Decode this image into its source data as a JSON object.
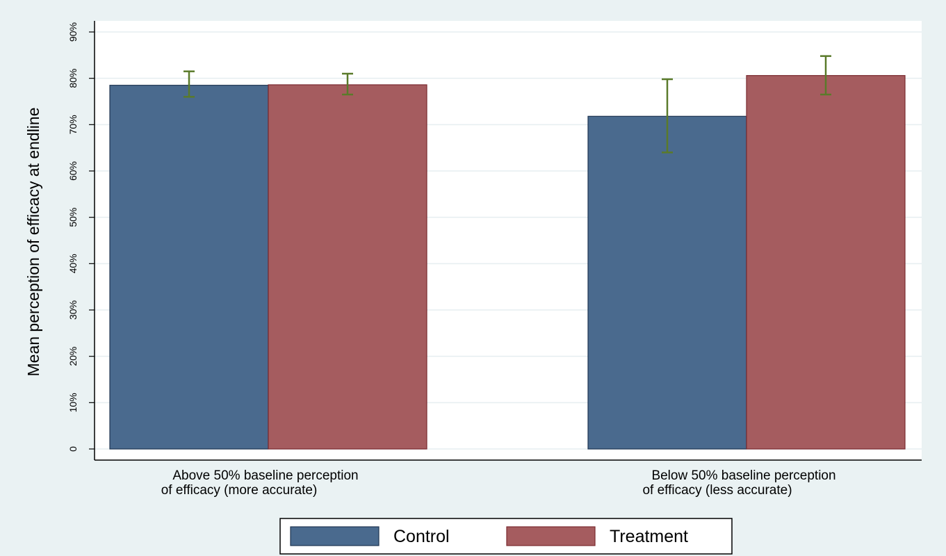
{
  "chart_data": {
    "type": "bar",
    "title": "",
    "ylabel": "Mean perception of efficacy at endline",
    "xlabel": "",
    "ylim": [
      0,
      90
    ],
    "yticks": [
      0,
      10,
      20,
      30,
      40,
      50,
      60,
      70,
      80,
      90
    ],
    "ytick_labels": [
      "0",
      "10%",
      "20%",
      "30%",
      "40%",
      "50%",
      "60%",
      "70%",
      "80%",
      "90%"
    ],
    "grid": true,
    "legend_position": "bottom",
    "categories": [
      [
        "Above 50% baseline perception",
        "of efficacy (more accurate)"
      ],
      [
        "Below 50% baseline perception",
        "of efficacy (less accurate)"
      ]
    ],
    "series": [
      {
        "name": "Control",
        "color": "#4a6a8e",
        "values": [
          78.5,
          71.8
        ],
        "error_low": [
          76.0,
          64.0
        ],
        "error_high": [
          81.5,
          79.8
        ]
      },
      {
        "name": "Treatment",
        "color": "#a55c5f",
        "values": [
          78.6,
          80.6
        ],
        "error_low": [
          76.5,
          76.5
        ],
        "error_high": [
          81.0,
          84.8
        ]
      }
    ],
    "error_bar_color": "#5a7a2a"
  }
}
